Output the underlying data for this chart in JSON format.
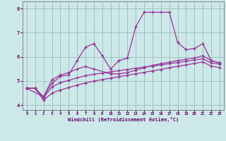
{
  "xlabel": "Windchill (Refroidissement éolien,°C)",
  "ylabel": "",
  "xlim": [
    -0.5,
    23.5
  ],
  "ylim": [
    3.8,
    8.3
  ],
  "xticks": [
    0,
    1,
    2,
    3,
    4,
    5,
    6,
    7,
    8,
    9,
    10,
    11,
    12,
    13,
    14,
    15,
    16,
    17,
    18,
    19,
    20,
    21,
    22,
    23
  ],
  "yticks": [
    4,
    5,
    6,
    7,
    8
  ],
  "background_color": "#cce8e8",
  "line_color": "#993399",
  "grid_color": "#99bbbb",
  "line1_x": [
    0,
    1,
    2,
    3,
    4,
    5,
    6,
    7,
    8,
    9,
    10,
    11,
    12,
    13,
    14,
    15,
    16,
    17,
    18,
    19,
    20,
    21,
    22,
    23
  ],
  "line1_y": [
    4.7,
    4.7,
    4.35,
    4.9,
    5.2,
    5.25,
    5.85,
    6.4,
    6.55,
    6.05,
    5.5,
    5.85,
    5.95,
    7.25,
    7.85,
    7.85,
    7.85,
    7.85,
    6.6,
    6.3,
    6.35,
    6.55,
    5.85,
    5.75
  ],
  "line2_x": [
    0,
    2,
    3,
    4,
    5,
    6,
    7,
    8,
    10,
    11,
    12,
    13,
    14,
    15,
    16,
    17,
    18,
    19,
    20,
    21,
    22,
    23
  ],
  "line2_y": [
    4.7,
    4.35,
    5.05,
    5.25,
    5.35,
    5.5,
    5.6,
    5.5,
    5.3,
    5.3,
    5.35,
    5.45,
    5.55,
    5.65,
    5.72,
    5.78,
    5.85,
    5.9,
    5.95,
    6.05,
    5.85,
    5.75
  ],
  "line3_x": [
    0,
    1,
    2,
    3,
    4,
    5,
    6,
    7,
    8,
    9,
    10,
    11,
    12,
    13,
    14,
    15,
    16,
    17,
    18,
    19,
    20,
    21,
    22,
    23
  ],
  "line3_y": [
    4.7,
    4.7,
    4.3,
    4.75,
    4.93,
    5.03,
    5.13,
    5.22,
    5.28,
    5.33,
    5.38,
    5.43,
    5.48,
    5.53,
    5.58,
    5.62,
    5.67,
    5.72,
    5.77,
    5.82,
    5.87,
    5.92,
    5.75,
    5.7
  ],
  "line4_x": [
    0,
    1,
    2,
    3,
    4,
    5,
    6,
    7,
    8,
    9,
    10,
    11,
    12,
    13,
    14,
    15,
    16,
    17,
    18,
    19,
    20,
    21,
    22,
    23
  ],
  "line4_y": [
    4.7,
    4.7,
    4.2,
    4.5,
    4.63,
    4.73,
    4.83,
    4.92,
    5.0,
    5.06,
    5.12,
    5.18,
    5.24,
    5.3,
    5.36,
    5.42,
    5.48,
    5.55,
    5.61,
    5.67,
    5.73,
    5.79,
    5.62,
    5.56
  ]
}
